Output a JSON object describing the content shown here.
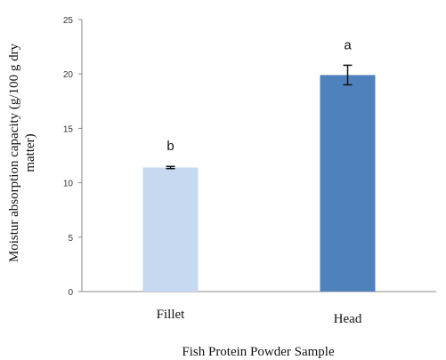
{
  "chart_data": {
    "type": "bar",
    "categories": [
      "Fillet",
      "Head"
    ],
    "values": [
      11.4,
      19.9
    ],
    "errors": [
      0.1,
      0.9
    ],
    "data_labels": [
      "b",
      "a"
    ],
    "colors": [
      "#c6d9f1",
      "#4f81bd"
    ],
    "xlabel": "Fish Protein Powder Sample",
    "ylabel_lines": [
      "Moistur absorption capacity (g/100 g dry",
      "matter)"
    ],
    "ylim": [
      0,
      25
    ],
    "yticks": [
      "0",
      "5",
      "10",
      "15",
      "20",
      "25"
    ],
    "grid": false,
    "legend": "none"
  }
}
